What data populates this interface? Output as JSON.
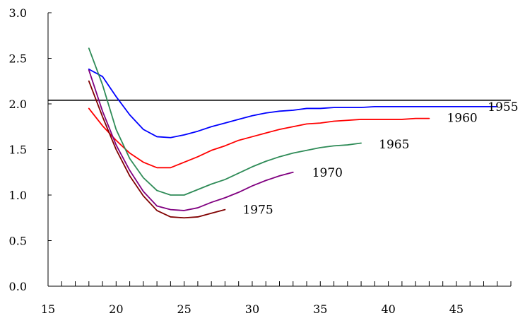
{
  "chart_data": {
    "type": "line",
    "title": "",
    "xlabel": "",
    "ylabel": "",
    "xlim": [
      15,
      49
    ],
    "ylim": [
      0.0,
      3.0
    ],
    "x_ticks_major": [
      15,
      20,
      25,
      30,
      35,
      40,
      45
    ],
    "x_tick_labels": [
      "15",
      "20",
      "25",
      "30",
      "35",
      "40",
      "45"
    ],
    "y_ticks": [
      0.0,
      0.5,
      1.0,
      1.5,
      2.0,
      2.5,
      3.0
    ],
    "y_tick_labels": [
      "0.0",
      "0.5",
      "1.0",
      "1.5",
      "2.0",
      "2.5",
      "3.0"
    ],
    "grid": false,
    "legend": "none",
    "reference_line": {
      "y": 2.04,
      "x_from": 15,
      "x_to": 49,
      "color": "#000000"
    },
    "series": [
      {
        "name": "1955",
        "color": "#0000ff",
        "x": [
          18,
          19,
          20,
          21,
          22,
          23,
          24,
          25,
          26,
          27,
          28,
          29,
          30,
          31,
          32,
          33,
          34,
          35,
          36,
          37,
          38,
          39,
          40,
          41,
          42,
          43,
          44,
          45,
          46,
          47,
          48
        ],
        "y": [
          2.38,
          2.3,
          2.08,
          1.88,
          1.72,
          1.64,
          1.63,
          1.66,
          1.7,
          1.75,
          1.79,
          1.83,
          1.87,
          1.9,
          1.92,
          1.93,
          1.95,
          1.95,
          1.96,
          1.96,
          1.96,
          1.97,
          1.97,
          1.97,
          1.97,
          1.97,
          1.97,
          1.97,
          1.97,
          1.97,
          1.97
        ]
      },
      {
        "name": "1960",
        "color": "#ff0000",
        "x": [
          18,
          19,
          20,
          21,
          22,
          23,
          24,
          25,
          26,
          27,
          28,
          29,
          30,
          31,
          32,
          33,
          34,
          35,
          36,
          37,
          38,
          39,
          40,
          41,
          42,
          43
        ],
        "y": [
          1.95,
          1.76,
          1.6,
          1.46,
          1.36,
          1.3,
          1.3,
          1.36,
          1.42,
          1.49,
          1.54,
          1.6,
          1.64,
          1.68,
          1.72,
          1.75,
          1.78,
          1.79,
          1.81,
          1.82,
          1.83,
          1.83,
          1.83,
          1.83,
          1.84,
          1.84
        ]
      },
      {
        "name": "1965",
        "color": "#2e8b57",
        "x": [
          18,
          19,
          20,
          21,
          22,
          23,
          24,
          25,
          26,
          27,
          28,
          29,
          30,
          31,
          32,
          33,
          34,
          35,
          36,
          37,
          38
        ],
        "y": [
          2.61,
          2.21,
          1.72,
          1.4,
          1.19,
          1.05,
          1.0,
          1.0,
          1.06,
          1.12,
          1.17,
          1.24,
          1.31,
          1.37,
          1.42,
          1.46,
          1.49,
          1.52,
          1.54,
          1.55,
          1.57
        ]
      },
      {
        "name": "1970",
        "color": "#800080",
        "x": [
          18,
          19,
          20,
          21,
          22,
          23,
          24,
          25,
          26,
          27,
          28,
          29,
          30,
          31,
          32,
          33
        ],
        "y": [
          2.37,
          1.92,
          1.55,
          1.27,
          1.04,
          0.88,
          0.84,
          0.83,
          0.86,
          0.92,
          0.97,
          1.03,
          1.1,
          1.16,
          1.21,
          1.25
        ]
      },
      {
        "name": "1975",
        "color": "#800000",
        "x": [
          18,
          19,
          20,
          21,
          22,
          23,
          24,
          25,
          26,
          27,
          28
        ],
        "y": [
          2.25,
          1.86,
          1.5,
          1.21,
          0.99,
          0.83,
          0.76,
          0.75,
          0.76,
          0.8,
          0.84
        ]
      }
    ],
    "series_labels": [
      {
        "text": "1955",
        "x": 47.3,
        "y": 1.97
      },
      {
        "text": "1960",
        "x": 44.3,
        "y": 1.85
      },
      {
        "text": "1965",
        "x": 39.3,
        "y": 1.56
      },
      {
        "text": "1970",
        "x": 34.4,
        "y": 1.25
      },
      {
        "text": "1975",
        "x": 29.3,
        "y": 0.84
      }
    ]
  }
}
